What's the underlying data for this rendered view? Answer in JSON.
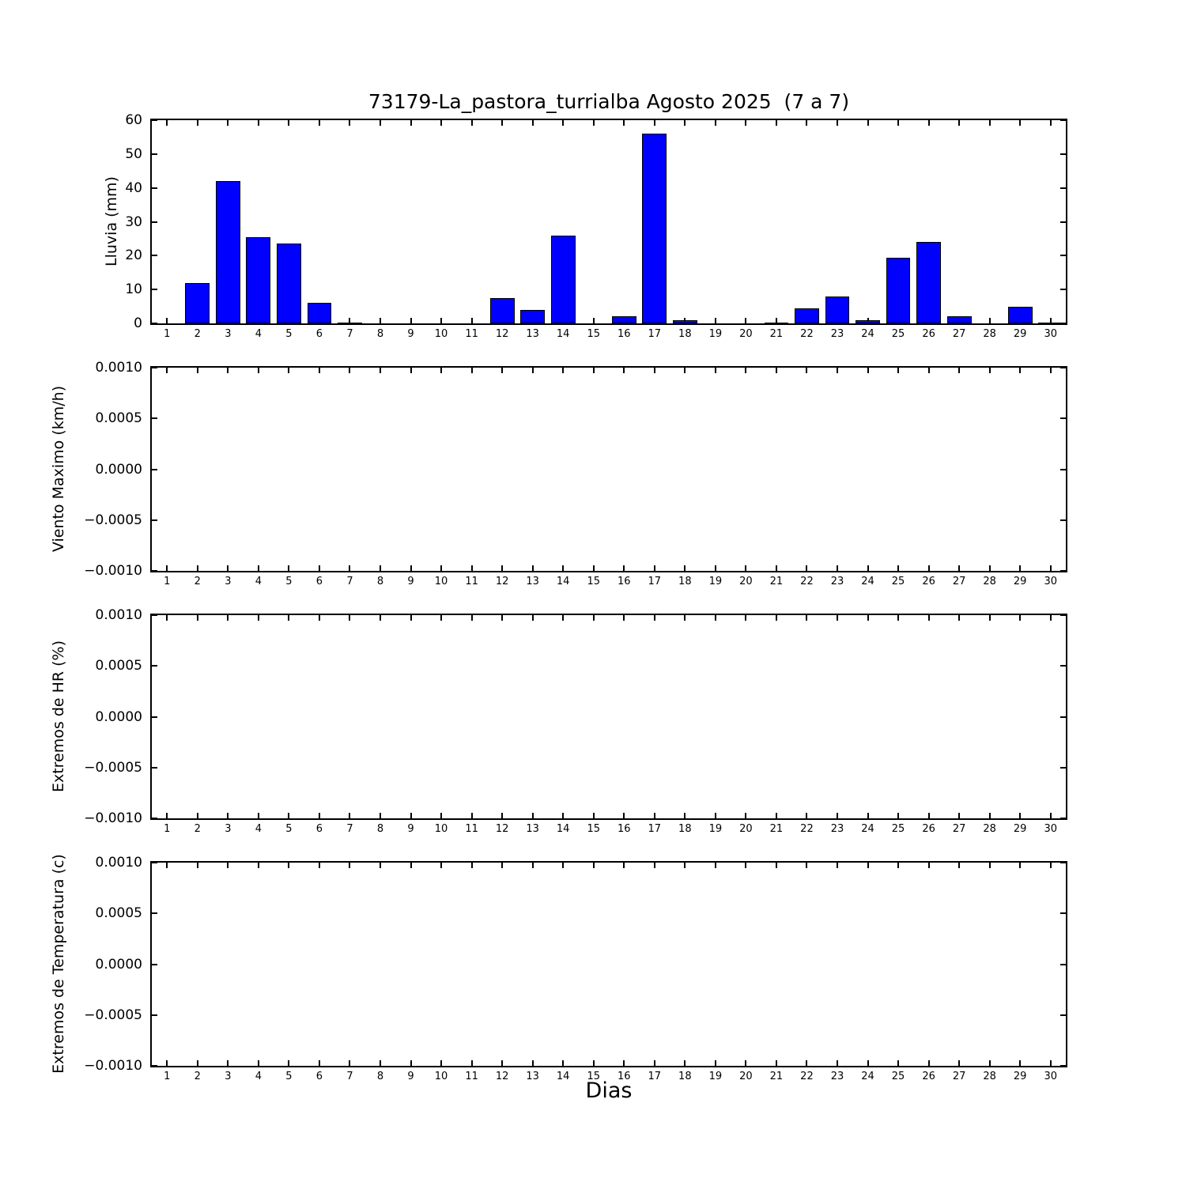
{
  "figure": {
    "background": "#ffffff",
    "axis_color": "#000000",
    "bar_color": "#0000ff",
    "bar_edge_color": "#000000"
  },
  "chart_data": [
    {
      "type": "bar",
      "title": "73179-La_pastora_turrialba Agosto 2025  (7 a 7)",
      "ylabel": "Lluvia (mm)",
      "xlabel": "",
      "categories": [
        1,
        2,
        3,
        4,
        5,
        6,
        7,
        8,
        9,
        10,
        11,
        12,
        13,
        14,
        15,
        16,
        17,
        18,
        19,
        20,
        21,
        22,
        23,
        24,
        25,
        26,
        27,
        28,
        29,
        30
      ],
      "values": [
        0,
        12,
        42,
        25.5,
        23.5,
        6,
        0.3,
        0,
        0,
        0,
        0,
        7.5,
        4,
        26,
        0,
        2,
        56,
        1,
        0,
        0,
        0.2,
        4.5,
        8,
        1,
        19.3,
        24,
        2,
        0,
        5,
        0.3
      ],
      "ylim": [
        0,
        60
      ],
      "ytick_values": [
        0,
        10,
        20,
        30,
        40,
        50,
        60
      ],
      "ytick_labels": [
        "0",
        "10",
        "20",
        "30",
        "40",
        "50",
        "60"
      ],
      "bar_width_frac": 0.8,
      "grid": false,
      "legend": null
    },
    {
      "type": "bar",
      "title": "",
      "ylabel": "Viento Maximo (km/h)",
      "xlabel": "",
      "categories": [
        1,
        2,
        3,
        4,
        5,
        6,
        7,
        8,
        9,
        10,
        11,
        12,
        13,
        14,
        15,
        16,
        17,
        18,
        19,
        20,
        21,
        22,
        23,
        24,
        25,
        26,
        27,
        28,
        29,
        30
      ],
      "values": [],
      "ylim": [
        -0.001,
        0.001
      ],
      "ytick_values": [
        -0.001,
        -0.0005,
        0,
        0.0005,
        0.001
      ],
      "ytick_labels": [
        "−0.0010",
        "−0.0005",
        "0.0000",
        "0.0005",
        "0.0010"
      ],
      "bar_width_frac": 0.8,
      "grid": false,
      "legend": null
    },
    {
      "type": "bar",
      "title": "",
      "ylabel": "Extremos de HR (%)",
      "xlabel": "",
      "categories": [
        1,
        2,
        3,
        4,
        5,
        6,
        7,
        8,
        9,
        10,
        11,
        12,
        13,
        14,
        15,
        16,
        17,
        18,
        19,
        20,
        21,
        22,
        23,
        24,
        25,
        26,
        27,
        28,
        29,
        30
      ],
      "values": [],
      "ylim": [
        -0.001,
        0.001
      ],
      "ytick_values": [
        -0.001,
        -0.0005,
        0,
        0.0005,
        0.001
      ],
      "ytick_labels": [
        "−0.0010",
        "−0.0005",
        "0.0000",
        "0.0005",
        "0.0010"
      ],
      "bar_width_frac": 0.8,
      "grid": false,
      "legend": null
    },
    {
      "type": "bar",
      "title": "",
      "ylabel": "Extremos de Temperatura (c)",
      "xlabel": "Dias",
      "categories": [
        1,
        2,
        3,
        4,
        5,
        6,
        7,
        8,
        9,
        10,
        11,
        12,
        13,
        14,
        15,
        16,
        17,
        18,
        19,
        20,
        21,
        22,
        23,
        24,
        25,
        26,
        27,
        28,
        29,
        30
      ],
      "values": [],
      "ylim": [
        -0.001,
        0.001
      ],
      "ytick_values": [
        -0.001,
        -0.0005,
        0,
        0.0005,
        0.001
      ],
      "ytick_labels": [
        "−0.0010",
        "−0.0005",
        "0.0000",
        "0.0005",
        "0.0010"
      ],
      "bar_width_frac": 0.8,
      "grid": false,
      "legend": null
    }
  ]
}
